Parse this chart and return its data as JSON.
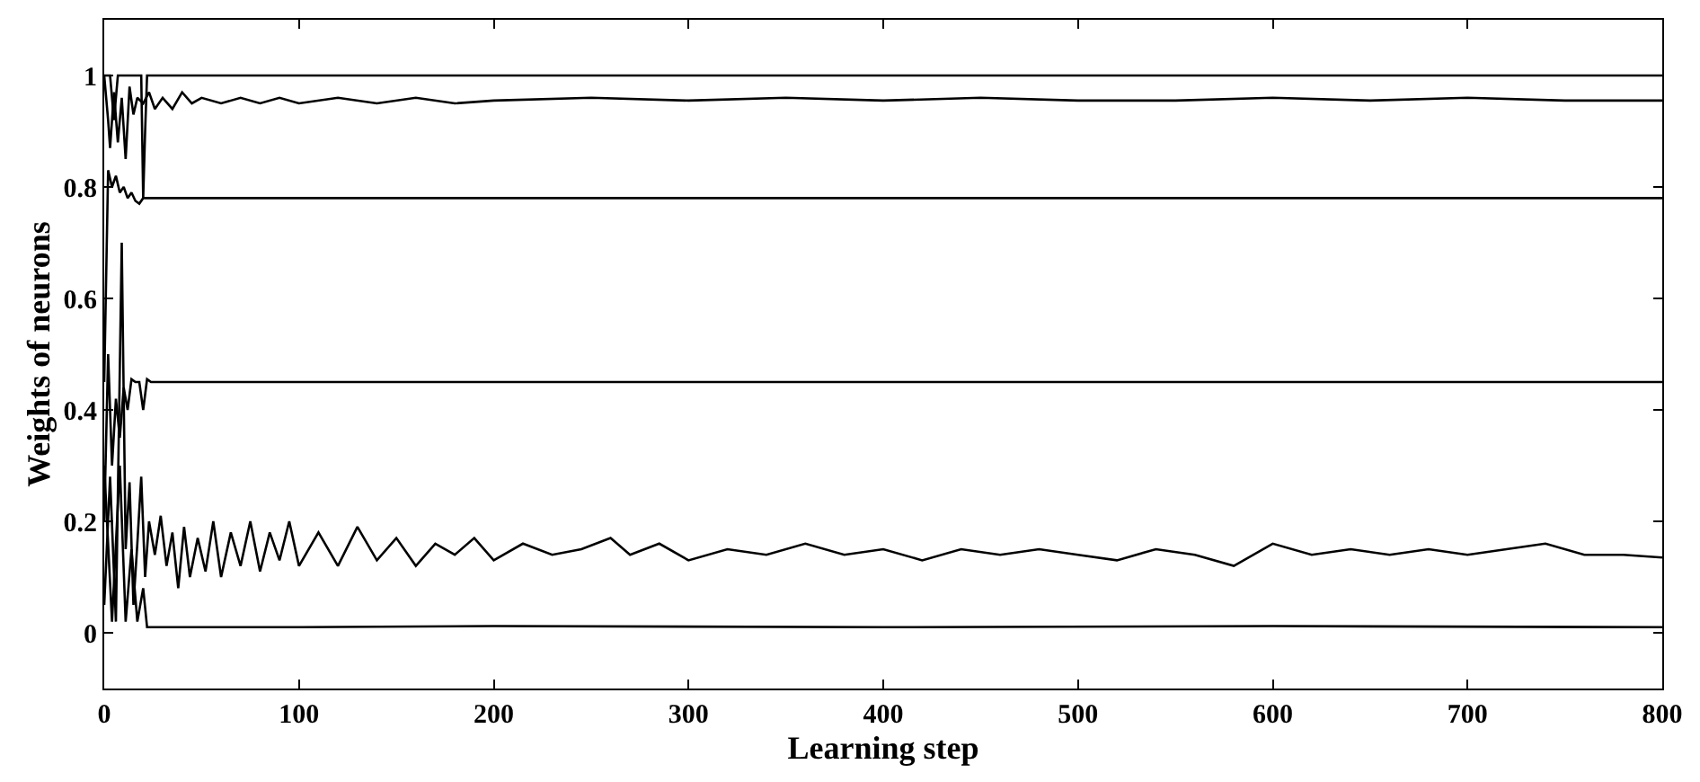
{
  "chart_data": {
    "type": "line",
    "xlabel": "Learning step",
    "ylabel": "Weights of neurons",
    "xlim": [
      0,
      800
    ],
    "ylim": [
      -0.1,
      1.1
    ],
    "xticks": [
      0,
      100,
      200,
      300,
      400,
      500,
      600,
      700,
      800
    ],
    "yticks": [
      0,
      0.2,
      0.4,
      0.6,
      0.8,
      1
    ],
    "grid": false,
    "marker": "none",
    "line_style": "solid",
    "series": [
      {
        "color": "#000000",
        "x": [
          0,
          3,
          5,
          7,
          9,
          19,
          20,
          21,
          22,
          100,
          800
        ],
        "values": [
          1,
          1,
          0.92,
          1,
          1,
          1,
          0.78,
          0.9,
          1,
          1,
          1
        ]
      },
      {
        "color": "#000000",
        "x": [
          0,
          2,
          3,
          5,
          7,
          9,
          11,
          13,
          15,
          17,
          20,
          23,
          26,
          30,
          35,
          40,
          45,
          50,
          60,
          70,
          80,
          90,
          100,
          120,
          140,
          160,
          180,
          200,
          250,
          300,
          350,
          400,
          450,
          500,
          550,
          600,
          650,
          700,
          750,
          800
        ],
        "values": [
          1,
          0.92,
          0.87,
          0.97,
          0.88,
          0.96,
          0.85,
          0.98,
          0.93,
          0.96,
          0.95,
          0.97,
          0.94,
          0.96,
          0.94,
          0.97,
          0.95,
          0.96,
          0.95,
          0.96,
          0.95,
          0.96,
          0.95,
          0.96,
          0.95,
          0.96,
          0.95,
          0.955,
          0.96,
          0.955,
          0.96,
          0.955,
          0.96,
          0.955,
          0.955,
          0.96,
          0.955,
          0.96,
          0.955,
          0.955
        ]
      },
      {
        "color": "#000000",
        "x": [
          0,
          2,
          4,
          6,
          8,
          10,
          12,
          14,
          16,
          18,
          20,
          30,
          100,
          800
        ],
        "values": [
          0.45,
          0.83,
          0.8,
          0.82,
          0.79,
          0.8,
          0.78,
          0.79,
          0.775,
          0.77,
          0.78,
          0.78,
          0.78,
          0.78
        ]
      },
      {
        "color": "#000000",
        "x": [
          0,
          2,
          4,
          6,
          8,
          10,
          12,
          14,
          16,
          18,
          20,
          22,
          24,
          100,
          800
        ],
        "values": [
          0.2,
          0.5,
          0.3,
          0.42,
          0.35,
          0.44,
          0.4,
          0.455,
          0.45,
          0.45,
          0.4,
          0.455,
          0.45,
          0.45,
          0.45
        ]
      },
      {
        "color": "#000000",
        "x": [
          0,
          3,
          6,
          9,
          11,
          13,
          15,
          17,
          19,
          21,
          23,
          26,
          29,
          32,
          35,
          38,
          41,
          44,
          48,
          52,
          56,
          60,
          65,
          70,
          75,
          80,
          85,
          90,
          95,
          100,
          110,
          120,
          130,
          140,
          150,
          160,
          170,
          180,
          190,
          200,
          215,
          230,
          245,
          260,
          270,
          285,
          300,
          320,
          340,
          360,
          380,
          400,
          420,
          440,
          460,
          480,
          500,
          520,
          540,
          560,
          580,
          600,
          620,
          640,
          660,
          680,
          700,
          720,
          740,
          760,
          780,
          800
        ],
        "values": [
          0.05,
          0.28,
          0.02,
          0.7,
          0.15,
          0.27,
          0.05,
          0.16,
          0.28,
          0.1,
          0.2,
          0.14,
          0.21,
          0.12,
          0.18,
          0.08,
          0.19,
          0.1,
          0.17,
          0.11,
          0.2,
          0.1,
          0.18,
          0.12,
          0.2,
          0.11,
          0.18,
          0.13,
          0.2,
          0.12,
          0.18,
          0.12,
          0.19,
          0.13,
          0.17,
          0.12,
          0.16,
          0.14,
          0.17,
          0.13,
          0.16,
          0.14,
          0.15,
          0.17,
          0.14,
          0.16,
          0.13,
          0.15,
          0.14,
          0.16,
          0.14,
          0.15,
          0.13,
          0.15,
          0.14,
          0.15,
          0.14,
          0.13,
          0.15,
          0.14,
          0.12,
          0.16,
          0.14,
          0.15,
          0.14,
          0.15,
          0.14,
          0.15,
          0.16,
          0.14,
          0.14,
          0.135
        ]
      },
      {
        "color": "#000000",
        "x": [
          0,
          4,
          8,
          11,
          14,
          17,
          20,
          22,
          30,
          100,
          200,
          400,
          600,
          800
        ],
        "values": [
          0.3,
          0.02,
          0.3,
          0.02,
          0.15,
          0.02,
          0.08,
          0.01,
          0.01,
          0.01,
          0.012,
          0.01,
          0.012,
          0.01
        ]
      }
    ]
  }
}
